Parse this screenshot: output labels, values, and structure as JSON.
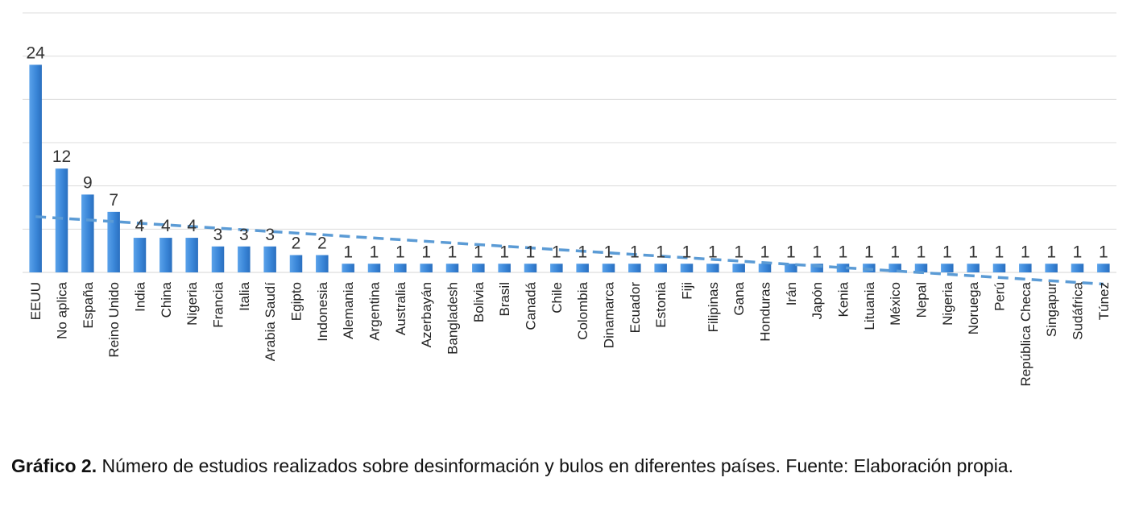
{
  "chart_data": {
    "type": "bar",
    "categories": [
      "EEUU",
      "No aplica",
      "España",
      "Reino Unido",
      "India",
      "China",
      "Nigeria",
      "Francia",
      "Italia",
      "Arabia Saudí",
      "Egipto",
      "Indonesia",
      "Alemania",
      "Argentina",
      "Australia",
      "Azerbayán",
      "Bangladesh",
      "Bolivia",
      "Brasil",
      "Canadá",
      "Chile",
      "Colombia",
      "Dinamarca",
      "Ecuador",
      "Estonia",
      "Fiji",
      "Filipinas",
      "Gana",
      "Honduras",
      "Irán",
      "Japón",
      "Kenia",
      "Lituania",
      "México",
      "Nepal",
      "Nigeria",
      "Noruega",
      "Perú",
      "República Checa",
      "Singapur",
      "Sudáfrica",
      "Túnez"
    ],
    "values": [
      24,
      12,
      9,
      7,
      4,
      4,
      4,
      3,
      3,
      3,
      2,
      2,
      1,
      1,
      1,
      1,
      1,
      1,
      1,
      1,
      1,
      1,
      1,
      1,
      1,
      1,
      1,
      1,
      1,
      1,
      1,
      1,
      1,
      1,
      1,
      1,
      1,
      1,
      1,
      1,
      1,
      1
    ],
    "data_labels": true,
    "ylim": [
      0,
      30
    ],
    "grid": true,
    "trendline": {
      "type": "linear",
      "style": "dashed",
      "color": "#5b9bd5"
    },
    "bar_color": "#3a86d8"
  },
  "caption": {
    "label": "Gráfico 2.",
    "text": " Número de estudios realizados sobre desinformación y bulos en diferentes países. Fuente: Elaboración propia."
  }
}
